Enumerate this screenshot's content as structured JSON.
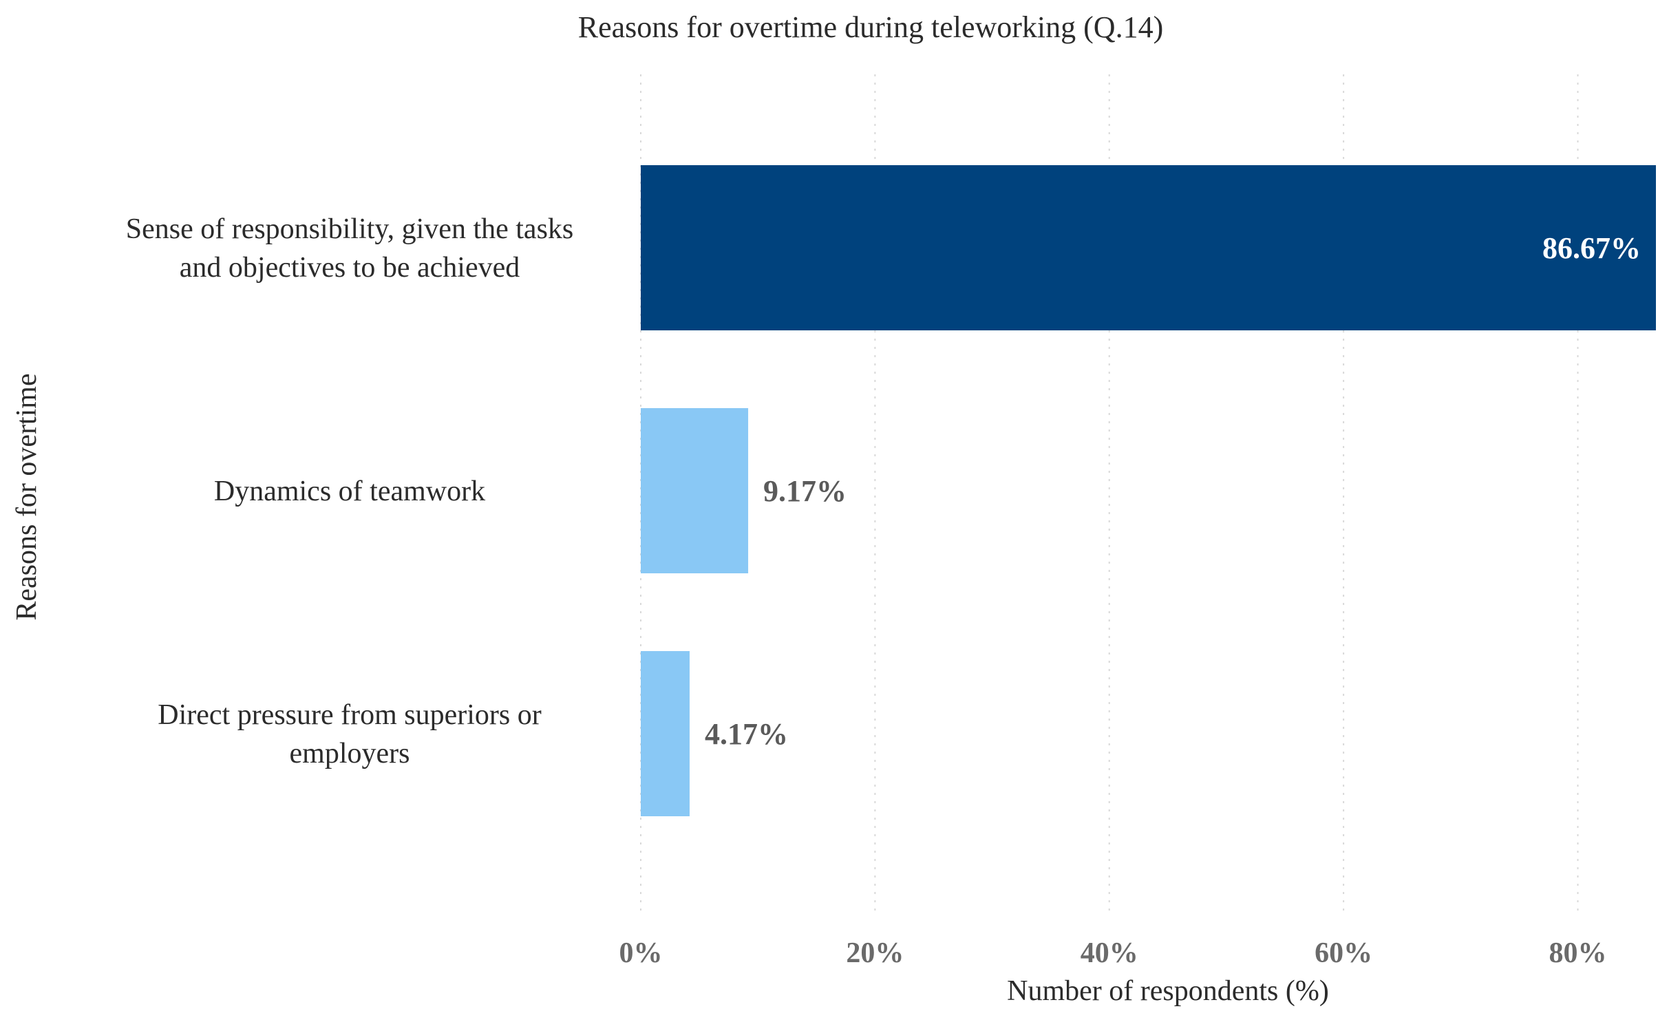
{
  "chart_data": {
    "type": "bar",
    "orientation": "horizontal",
    "title": "Reasons for overtime during teleworking (Q.14)",
    "xlabel": "Number of respondents (%)",
    "ylabel": "Reasons for overtime",
    "xlim": [
      0,
      86.67
    ],
    "xticks": [
      0,
      20,
      40,
      60,
      80
    ],
    "xtick_labels": [
      "0%",
      "20%",
      "40%",
      "60%",
      "80%"
    ],
    "grid": "vertical dotted",
    "legend": "none",
    "categories": [
      [
        "Sense of responsibility, given the tasks",
        "and objectives to be achieved"
      ],
      [
        "Dynamics of teamwork"
      ],
      [
        "Direct pressure from superiors or",
        "employers"
      ]
    ],
    "values": [
      86.67,
      9.17,
      4.17
    ],
    "data_labels": [
      "86.67%",
      "9.17%",
      "4.17%"
    ],
    "colors": [
      "#00427d",
      "#89c8f5",
      "#89c8f5"
    ],
    "data_label_colors": [
      "#ffffff",
      "#5a5a5a",
      "#5a5a5a"
    ]
  }
}
